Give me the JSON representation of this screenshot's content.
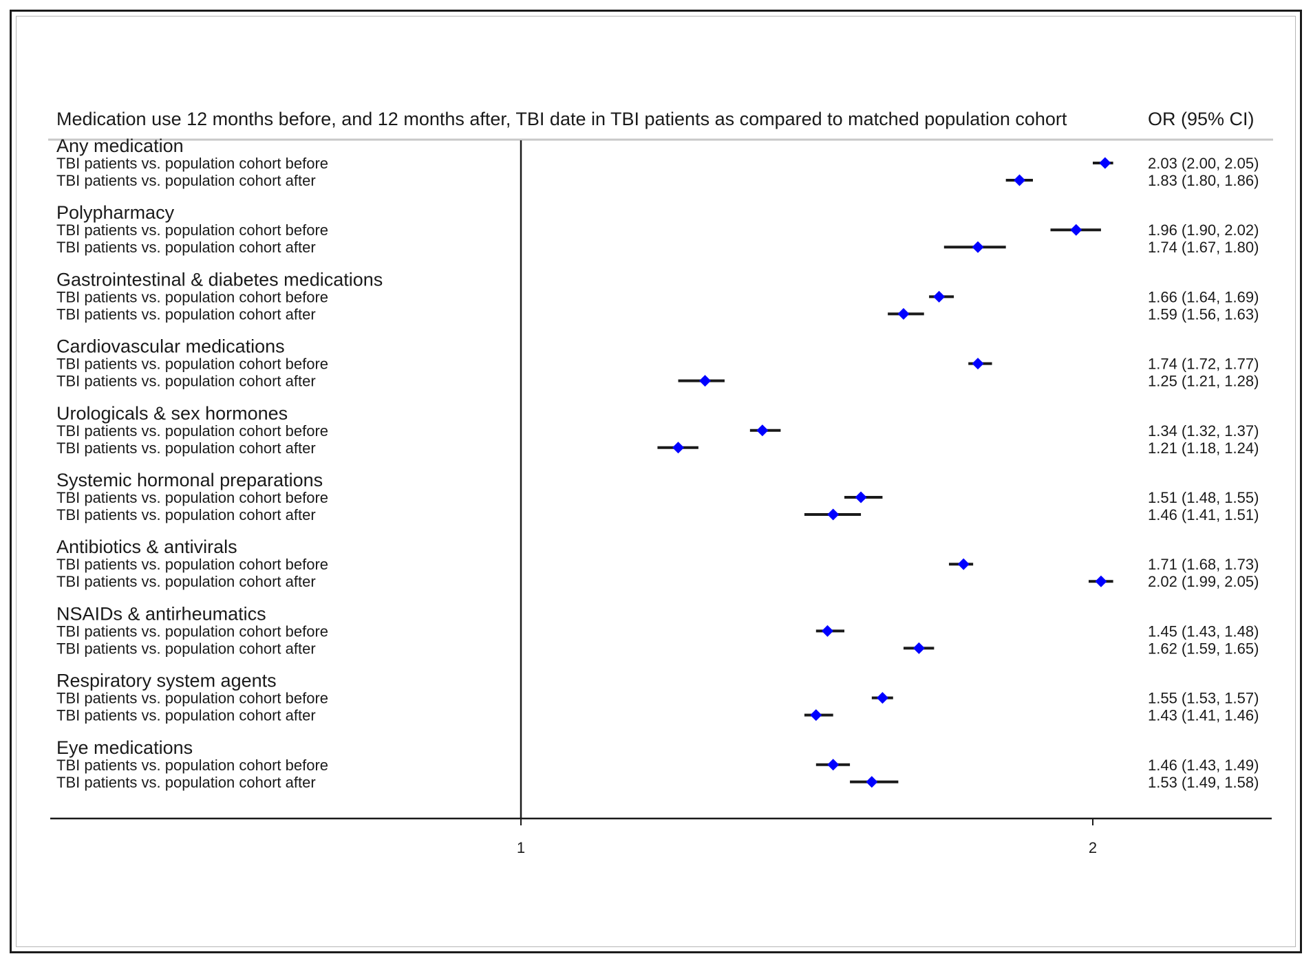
{
  "chart_data": {
    "type": "forest",
    "title": "Medication use 12 months before, and 12 months after, TBI date in TBI patients as compared to matched population cohort",
    "stat_header": "OR (95% CI)",
    "x_scale": "log",
    "x_ticks": [
      1,
      2
    ],
    "null_line": 1,
    "marker_color": "#0000ff",
    "groups": [
      {
        "name": "Any medication",
        "rows": [
          {
            "label": "TBI patients vs. population cohort before",
            "or": 2.03,
            "lo": 2.0,
            "hi": 2.05,
            "text": "2.03 (2.00, 2.05)"
          },
          {
            "label": "TBI patients vs. population cohort after",
            "or": 1.83,
            "lo": 1.8,
            "hi": 1.86,
            "text": "1.83 (1.80, 1.86)"
          }
        ]
      },
      {
        "name": "Polypharmacy",
        "rows": [
          {
            "label": "TBI patients vs. population cohort before",
            "or": 1.96,
            "lo": 1.9,
            "hi": 2.02,
            "text": "1.96 (1.90, 2.02)"
          },
          {
            "label": "TBI patients vs. population cohort after",
            "or": 1.74,
            "lo": 1.67,
            "hi": 1.8,
            "text": "1.74 (1.67, 1.80)"
          }
        ]
      },
      {
        "name": "Gastrointestinal & diabetes medications",
        "rows": [
          {
            "label": "TBI patients vs. population cohort before",
            "or": 1.66,
            "lo": 1.64,
            "hi": 1.69,
            "text": "1.66 (1.64, 1.69)"
          },
          {
            "label": "TBI patients vs. population cohort after",
            "or": 1.59,
            "lo": 1.56,
            "hi": 1.63,
            "text": "1.59 (1.56, 1.63)"
          }
        ]
      },
      {
        "name": "Cardiovascular medications",
        "rows": [
          {
            "label": "TBI patients vs. population cohort before",
            "or": 1.74,
            "lo": 1.72,
            "hi": 1.77,
            "text": "1.74 (1.72, 1.77)"
          },
          {
            "label": "TBI patients vs. population cohort after",
            "or": 1.25,
            "lo": 1.21,
            "hi": 1.28,
            "text": "1.25 (1.21, 1.28)"
          }
        ]
      },
      {
        "name": "Urologicals & sex hormones",
        "rows": [
          {
            "label": "TBI patients vs. population cohort before",
            "or": 1.34,
            "lo": 1.32,
            "hi": 1.37,
            "text": "1.34 (1.32, 1.37)"
          },
          {
            "label": "TBI patients vs. population cohort after",
            "or": 1.21,
            "lo": 1.18,
            "hi": 1.24,
            "text": "1.21 (1.18, 1.24)"
          }
        ]
      },
      {
        "name": "Systemic hormonal preparations",
        "rows": [
          {
            "label": "TBI patients vs. population cohort before",
            "or": 1.51,
            "lo": 1.48,
            "hi": 1.55,
            "text": "1.51 (1.48, 1.55)"
          },
          {
            "label": "TBI patients vs. population cohort after",
            "or": 1.46,
            "lo": 1.41,
            "hi": 1.51,
            "text": "1.46 (1.41, 1.51)"
          }
        ]
      },
      {
        "name": "Antibiotics & antivirals",
        "rows": [
          {
            "label": "TBI patients vs. population cohort before",
            "or": 1.71,
            "lo": 1.68,
            "hi": 1.73,
            "text": "1.71 (1.68, 1.73)"
          },
          {
            "label": "TBI patients vs. population cohort after",
            "or": 2.02,
            "lo": 1.99,
            "hi": 2.05,
            "text": "2.02 (1.99, 2.05)"
          }
        ]
      },
      {
        "name": "NSAIDs & antirheumatics",
        "rows": [
          {
            "label": "TBI patients vs. population cohort before",
            "or": 1.45,
            "lo": 1.43,
            "hi": 1.48,
            "text": "1.45 (1.43, 1.48)"
          },
          {
            "label": "TBI patients vs. population cohort after",
            "or": 1.62,
            "lo": 1.59,
            "hi": 1.65,
            "text": "1.62 (1.59, 1.65)"
          }
        ]
      },
      {
        "name": "Respiratory system agents",
        "rows": [
          {
            "label": "TBI patients vs. population cohort before",
            "or": 1.55,
            "lo": 1.53,
            "hi": 1.57,
            "text": "1.55 (1.53, 1.57)"
          },
          {
            "label": "TBI patients vs. population cohort after",
            "or": 1.43,
            "lo": 1.41,
            "hi": 1.46,
            "text": "1.43 (1.41, 1.46)"
          }
        ]
      },
      {
        "name": "Eye medications",
        "rows": [
          {
            "label": "TBI patients vs. population cohort before",
            "or": 1.46,
            "lo": 1.43,
            "hi": 1.49,
            "text": "1.46 (1.43, 1.49)"
          },
          {
            "label": "TBI patients vs. population cohort after",
            "or": 1.53,
            "lo": 1.49,
            "hi": 1.58,
            "text": "1.53 (1.49, 1.58)"
          }
        ]
      }
    ]
  }
}
